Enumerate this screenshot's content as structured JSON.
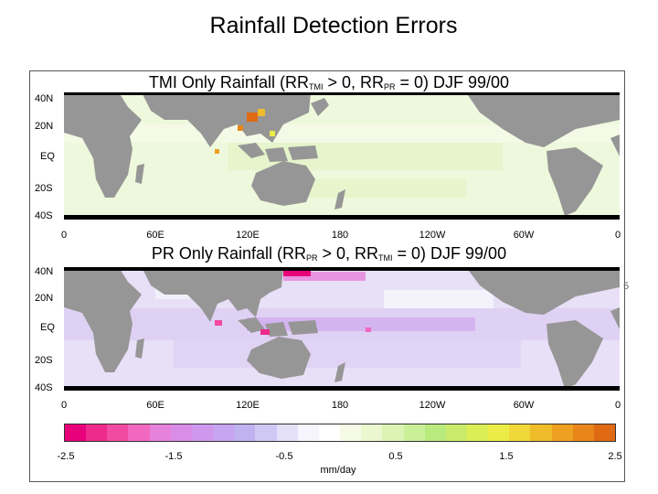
{
  "slide": {
    "title": "Rainfall Detection Errors"
  },
  "top_panel": {
    "title_main": "TMI Only Rainfall (RR",
    "sub1": "TMI",
    "title_mid": " > 0, RR",
    "sub2": "PR",
    "title_end": " = 0) DJF 99/00",
    "lat_labels": [
      "40N",
      "20N",
      "EQ",
      "20S",
      "40S"
    ],
    "lon_labels": [
      "0",
      "60E",
      "120E",
      "180",
      "120W",
      "60W",
      "0"
    ]
  },
  "bottom_panel": {
    "title_main": "PR Only Rainfall (RR",
    "sub1": "PR",
    "title_mid": " > 0, RR",
    "sub2": "TMI",
    "title_end": " = 0) DJF 99/00",
    "lat_labels": [
      "40N",
      "20N",
      "EQ",
      "20S",
      "40S"
    ],
    "lon_labels": [
      "0",
      "60E",
      "120E",
      "180",
      "120W",
      "60W",
      "0"
    ]
  },
  "colorbar": {
    "ticks": [
      "-2.5",
      "-1.5",
      "-0.5",
      "0.5",
      "1.5",
      "2.5"
    ],
    "unit": "mm/day",
    "colors": [
      "#e8007a",
      "#ee2a8c",
      "#f24aa0",
      "#f068c0",
      "#e682dc",
      "#d98ce8",
      "#cf98ee",
      "#c6a4f0",
      "#c0b2f0",
      "#cfc8f4",
      "#e4e0f8",
      "#f6f4fc",
      "#ffffff",
      "#f6fbe8",
      "#eaf7cf",
      "#dcf3b6",
      "#c9ef98",
      "#b8ea7e",
      "#c8ec6a",
      "#dcee56",
      "#ecec46",
      "#f0d838",
      "#f0bc2a",
      "#eea020",
      "#e8861a",
      "#e06a14"
    ]
  },
  "colors": {
    "land": "#969696",
    "ocean_top": "#eef8dc",
    "ocean_bottom": "#e8e0f6",
    "hot": "#e06a14",
    "magenta": "#e8007a"
  },
  "edge_mark": "5"
}
